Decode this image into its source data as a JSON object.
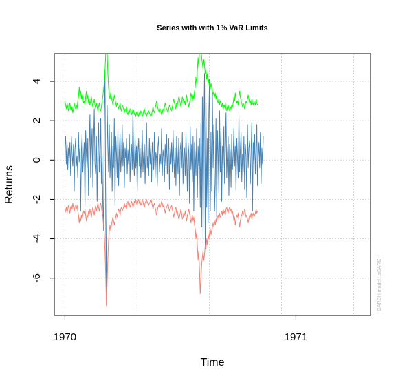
{
  "chart_data": {
    "type": "line",
    "title": "Series with with 1% VaR Limits",
    "xlabel": "Time",
    "ylabel": "Returns",
    "side_note": "GARCH model : sGARCH",
    "xlim": [
      1969.9541,
      1971.3231
    ],
    "ylim": [
      -7.9,
      5.4
    ],
    "x_ticks": [
      {
        "value": 1970,
        "label": "1970"
      },
      {
        "value": 1971,
        "label": "1971"
      }
    ],
    "y_ticks": [
      {
        "value": 4,
        "label": "4"
      },
      {
        "value": 2,
        "label": "2"
      },
      {
        "value": 0,
        "label": "0"
      },
      {
        "value": -2,
        "label": "-2"
      },
      {
        "value": -4,
        "label": "-4"
      },
      {
        "value": -6,
        "label": "-6"
      }
    ],
    "grid": true,
    "x_start": 1970,
    "x_step": 0.0031,
    "series": [
      {
        "color": "#4682b4",
        "values": [
          0.7,
          1.2,
          -0.2,
          0.9,
          -0.5,
          0.6,
          0.1,
          0.9,
          -0.8,
          1.2,
          0.3,
          -0.3,
          0.8,
          -1.6,
          0.5,
          1.1,
          -0.3,
          0.2,
          -0.9,
          1.4,
          -0.1,
          0.6,
          -2.6,
          0.4,
          1.3,
          -0.6,
          0.2,
          0.9,
          -2.4,
          1.5,
          0.3,
          -0.4,
          1.1,
          -1.8,
          0.6,
          2.3,
          -0.9,
          0.5,
          1.6,
          -1.4,
          0.8,
          2.6,
          -0.2,
          -0.7,
          1.2,
          -2.1,
          0.3,
          1.9,
          -0.6,
          0.4,
          2.1,
          -1.2,
          0.2,
          -2.2,
          -3.6,
          2.4,
          4.6,
          -2.8,
          -7.4,
          2.8,
          0.9,
          -0.6,
          1.8,
          -0.9,
          0.3,
          1.4,
          -1.6,
          0.7,
          -0.4,
          2.1,
          -2.3,
          1.2,
          0.4,
          -0.9,
          1.6,
          -1.3,
          0.5,
          1.3,
          -0.6,
          0.2,
          1.8,
          -0.3,
          0.9,
          -1.4,
          0.6,
          0.1,
          1.1,
          -0.7,
          0.5,
          -0.2,
          1.3,
          -1.1,
          0.3,
          0.8,
          -0.5,
          2.5,
          0.2,
          -0.8,
          1.2,
          -0.4,
          0.7,
          -1.6,
          0.4,
          1.1,
          -0.3,
          0.6,
          -0.9,
          0.2,
          1.5,
          -0.6,
          0.3,
          0.8,
          -1.2,
          0.5,
          1.9,
          -0.4,
          0.2,
          -0.8,
          1.1,
          -0.2,
          0.6,
          -1.1,
          0.9,
          0.3,
          -0.5,
          1.4,
          -0.9,
          0.4,
          0.1,
          -1.3,
          0.7,
          1.2,
          -0.6,
          0.3,
          -0.2,
          1.6,
          -0.8,
          0.5,
          0.2,
          -1.1,
          0.8,
          -0.3,
          1.3,
          -0.7,
          0.4,
          1.1,
          -1.5,
          0.6,
          -0.2,
          0.9,
          -0.6,
          1.5,
          0.2,
          -0.9,
          0.6,
          -1.3,
          1.2,
          0.3,
          -0.7,
          1.1,
          -1.8,
          0.5,
          0.9,
          -0.4,
          1.4,
          -1.2,
          0.3,
          0.6,
          -0.8,
          1.3,
          0.1,
          -1.6,
          0.9,
          0.4,
          -2.2,
          1.7,
          -0.5,
          0.8,
          -1.1,
          1.2,
          -2.6,
          0.9,
          0.3,
          -0.8,
          1.6,
          -1.9,
          0.7,
          -0.3,
          1.1,
          -2.4,
          1.9,
          -3.4,
          3.2,
          -4.2,
          1.8,
          4.4,
          -4.5,
          2.9,
          -2.4,
          1.1,
          -3.2,
          2.3,
          4.1,
          -2.6,
          1.4,
          -1.6,
          3.3,
          -0.4,
          1.8,
          -2.6,
          -1.2,
          2.1,
          -3.1,
          1.5,
          0.3,
          -1.7,
          2.5,
          -0.6,
          1.6,
          -2.1,
          0.7,
          -0.4,
          1.7,
          -1.2,
          0.5,
          2.4,
          -0.9,
          0.3,
          1.2,
          -1.8,
          0.8,
          0.4,
          -1.4,
          1.3,
          -0.5,
          0.2,
          1.6,
          -0.3,
          0.7,
          -1.6,
          1.1,
          0.2,
          -0.9,
          2.3,
          -0.6,
          0.5,
          1.4,
          -1.1,
          0.3,
          -0.6,
          1.2,
          -1.5,
          0.8,
          0.2,
          -1.9,
          1.8,
          -0.4,
          0.6,
          1.0,
          -1.2,
          0.4,
          1.9,
          -2.6,
          0.9,
          -0.2,
          1.3,
          -0.7,
          0.5,
          1.8,
          -1.3,
          0.2,
          0.9,
          -0.4,
          1.4,
          -1.2,
          0.6,
          -0.2,
          1.2
        ]
      },
      {
        "color": "#00ff00",
        "values": [
          3.0,
          2.8,
          2.6,
          2.9,
          2.7,
          2.5,
          2.7,
          2.9,
          2.6,
          2.5,
          2.7,
          2.4,
          2.6,
          2.9,
          2.7,
          2.6,
          2.8,
          2.6,
          3.0,
          3.2,
          3.7,
          3.3,
          3.5,
          3.1,
          3.4,
          3.2,
          2.9,
          3.0,
          2.8,
          3.2,
          3.5,
          3.1,
          3.3,
          2.9,
          3.1,
          2.8,
          3.0,
          3.2,
          2.9,
          2.7,
          2.9,
          3.1,
          2.8,
          2.6,
          2.9,
          2.7,
          2.5,
          2.7,
          2.9,
          2.6,
          2.5,
          2.7,
          3.0,
          3.2,
          3.6,
          3.9,
          4.5,
          5.4,
          6.4,
          5.5,
          4.4,
          3.7,
          3.3,
          3.1,
          3.4,
          3.2,
          3.0,
          2.8,
          3.0,
          3.3,
          3.1,
          2.9,
          2.7,
          2.9,
          2.8,
          2.6,
          2.7,
          2.9,
          2.6,
          2.5,
          2.8,
          2.7,
          2.6,
          2.4,
          2.6,
          2.5,
          2.7,
          2.4,
          2.3,
          2.5,
          2.4,
          2.6,
          2.5,
          2.3,
          2.4,
          2.6,
          2.5,
          2.3,
          2.4,
          2.2,
          2.4,
          2.5,
          2.3,
          2.2,
          2.4,
          2.3,
          2.5,
          2.4,
          2.2,
          2.3,
          2.5,
          2.6,
          2.4,
          2.3,
          2.2,
          2.4,
          2.3,
          2.5,
          2.4,
          2.3,
          2.2,
          2.3,
          2.5,
          2.7,
          2.5,
          2.4,
          2.6,
          2.8,
          3.0,
          2.8,
          2.6,
          2.5,
          2.4,
          2.6,
          2.5,
          2.3,
          2.4,
          2.6,
          2.5,
          2.7,
          2.9,
          2.7,
          2.6,
          2.5,
          2.4,
          2.6,
          2.8,
          2.7,
          2.6,
          2.5,
          2.7,
          2.9,
          3.1,
          2.9,
          2.7,
          2.6,
          2.9,
          2.8,
          3.0,
          3.2,
          3.1,
          2.9,
          2.7,
          2.9,
          3.2,
          3.1,
          2.9,
          3.0,
          2.8,
          3.1,
          3.3,
          3.0,
          2.9,
          2.7,
          2.9,
          3.1,
          3.4,
          3.2,
          3.0,
          3.3,
          3.1,
          3.5,
          3.7,
          4.2,
          3.9,
          4.6,
          5.2,
          4.7,
          5.6,
          6.3,
          5.7,
          5.2,
          4.9,
          4.6,
          5.1,
          4.8,
          4.4,
          4.6,
          4.1,
          4.4,
          3.9,
          4.1,
          3.8,
          3.6,
          3.9,
          3.7,
          3.5,
          3.3,
          3.5,
          3.2,
          3.4,
          3.1,
          3.3,
          3.0,
          2.9,
          3.1,
          2.8,
          3.0,
          2.9,
          2.7,
          2.9,
          2.6,
          2.8,
          2.7,
          2.9,
          2.6,
          2.5,
          2.7,
          2.8,
          2.6,
          2.5,
          2.7,
          2.6,
          2.8,
          2.7,
          2.9,
          3.2,
          3.0,
          3.4,
          3.1,
          2.9,
          3.0,
          2.8,
          3.2,
          3.5,
          3.2,
          3.0,
          2.9,
          2.7,
          2.9,
          2.8,
          2.6,
          2.8,
          3.0,
          2.9,
          3.1,
          3.3,
          3.1,
          2.9,
          3.0,
          2.8,
          3.1,
          2.9,
          2.8,
          3.0,
          2.9,
          2.8,
          3.1,
          2.9,
          2.8
        ]
      },
      {
        "color": "#fa8072",
        "values": [
          -2.7,
          -2.6,
          -2.4,
          -2.7,
          -2.5,
          -2.3,
          -2.5,
          -2.7,
          -2.4,
          -2.3,
          -2.5,
          -2.2,
          -2.4,
          -2.6,
          -2.4,
          -2.3,
          -2.5,
          -2.3,
          -2.6,
          -2.8,
          -3.2,
          -2.9,
          -3.1,
          -2.8,
          -3.0,
          -2.8,
          -2.6,
          -2.7,
          -2.5,
          -2.8,
          -3.1,
          -2.8,
          -2.9,
          -2.6,
          -2.8,
          -2.5,
          -2.7,
          -2.9,
          -2.6,
          -2.4,
          -2.6,
          -2.8,
          -2.5,
          -2.3,
          -2.6,
          -2.4,
          -2.2,
          -2.4,
          -2.6,
          -2.3,
          -2.2,
          -2.4,
          -2.7,
          -2.9,
          -3.3,
          -3.7,
          -4.6,
          -5.9,
          -7.4,
          -6.2,
          -5.0,
          -4.1,
          -3.6,
          -3.3,
          -3.6,
          -3.3,
          -3.1,
          -2.9,
          -3.1,
          -3.3,
          -3.1,
          -2.9,
          -2.7,
          -2.9,
          -2.7,
          -2.5,
          -2.6,
          -2.8,
          -2.5,
          -2.4,
          -2.6,
          -2.5,
          -2.4,
          -2.2,
          -2.4,
          -2.3,
          -2.5,
          -2.2,
          -2.1,
          -2.3,
          -2.2,
          -2.4,
          -2.3,
          -2.1,
          -2.2,
          -2.4,
          -2.3,
          -2.1,
          -2.2,
          -2.0,
          -2.2,
          -2.3,
          -2.1,
          -2.0,
          -2.2,
          -2.1,
          -2.3,
          -2.2,
          -2.0,
          -2.1,
          -2.3,
          -2.4,
          -2.2,
          -2.1,
          -2.0,
          -2.2,
          -2.1,
          -2.3,
          -2.2,
          -2.1,
          -2.0,
          -2.1,
          -2.3,
          -2.5,
          -2.3,
          -2.2,
          -2.4,
          -2.6,
          -2.8,
          -2.6,
          -2.4,
          -2.3,
          -2.2,
          -2.4,
          -2.3,
          -2.1,
          -2.2,
          -2.4,
          -2.3,
          -2.5,
          -2.7,
          -2.5,
          -2.4,
          -2.3,
          -2.2,
          -2.4,
          -2.6,
          -2.5,
          -2.4,
          -2.3,
          -2.5,
          -2.7,
          -2.9,
          -2.7,
          -2.5,
          -2.4,
          -2.7,
          -2.6,
          -2.8,
          -3.0,
          -2.9,
          -2.7,
          -2.5,
          -2.7,
          -3.0,
          -2.9,
          -2.7,
          -2.8,
          -2.6,
          -2.9,
          -3.1,
          -2.8,
          -2.7,
          -2.5,
          -2.7,
          -2.9,
          -3.2,
          -3.0,
          -2.8,
          -3.1,
          -2.9,
          -3.3,
          -3.5,
          -4.0,
          -3.7,
          -4.4,
          -5.1,
          -4.6,
          -5.6,
          -6.8,
          -6.0,
          -5.3,
          -4.9,
          -4.6,
          -5.1,
          -4.8,
          -4.3,
          -4.5,
          -4.0,
          -4.3,
          -3.8,
          -4.0,
          -3.7,
          -3.5,
          -3.8,
          -3.6,
          -3.4,
          -3.2,
          -3.4,
          -3.1,
          -3.3,
          -3.0,
          -3.2,
          -2.9,
          -2.8,
          -3.0,
          -2.7,
          -2.9,
          -2.8,
          -2.6,
          -2.8,
          -2.5,
          -2.7,
          -2.6,
          -2.8,
          -2.5,
          -2.4,
          -2.6,
          -2.7,
          -2.5,
          -2.4,
          -2.6,
          -2.5,
          -2.7,
          -2.6,
          -2.8,
          -3.1,
          -2.9,
          -3.3,
          -3.0,
          -2.8,
          -2.9,
          -2.7,
          -3.1,
          -3.4,
          -3.1,
          -2.9,
          -2.8,
          -2.6,
          -2.8,
          -2.7,
          -2.5,
          -2.7,
          -2.9,
          -2.8,
          -3.0,
          -3.2,
          -3.0,
          -2.8,
          -2.9,
          -2.7,
          -3.0,
          -2.8,
          -2.7,
          -2.9,
          -2.8,
          -2.7,
          -2.5,
          -2.7,
          -2.6
        ]
      }
    ]
  }
}
